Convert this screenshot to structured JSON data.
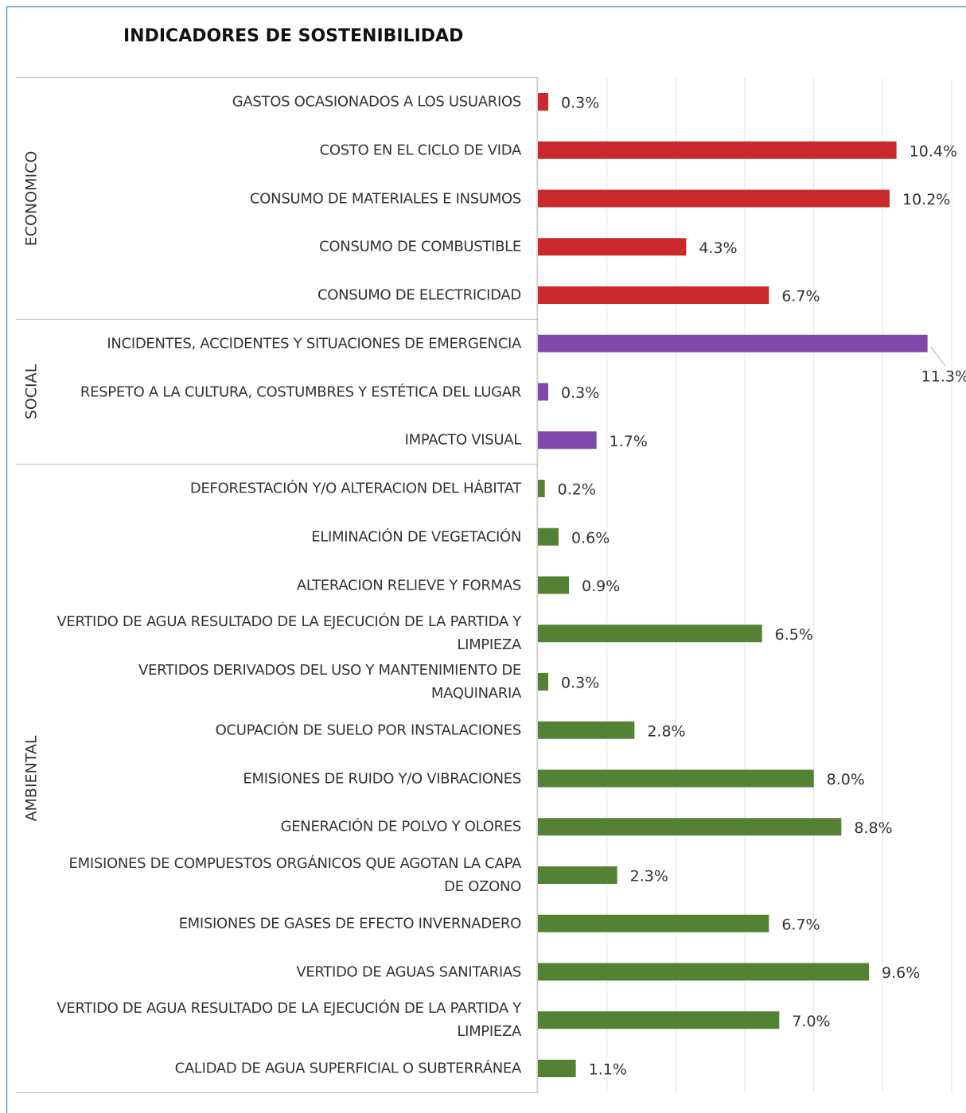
{
  "chart_data": {
    "type": "bar",
    "orientation": "horizontal",
    "title": "INDICADORES DE SOSTENIBILIDAD",
    "xlim": [
      0,
      12
    ],
    "xticks": [
      0,
      2,
      4,
      6,
      8,
      10,
      12
    ],
    "grid": true,
    "groups": [
      {
        "name": "ECONOMICO",
        "color": "#c9282d",
        "categories": [
          "GASTOS OCASIONADOS A LOS USUARIOS",
          "COSTO EN EL CICLO DE VIDA",
          "CONSUMO DE MATERIALES E INSUMOS",
          "CONSUMO DE COMBUSTIBLE",
          "CONSUMO DE ELECTRICIDAD"
        ],
        "values": [
          0.3,
          10.4,
          10.2,
          4.3,
          6.7
        ],
        "value_labels": [
          "0.3%",
          "10.4%",
          "10.2%",
          "4.3%",
          "6.7%"
        ]
      },
      {
        "name": "SOCIAL",
        "color": "#8048a8",
        "categories": [
          "INCIDENTES, ACCIDENTES Y SITUACIONES DE EMERGENCIA",
          "RESPETO A LA CULTURA, COSTUMBRES Y ESTÉTICA DEL LUGAR",
          "IMPACTO VISUAL"
        ],
        "values": [
          11.3,
          0.3,
          1.7
        ],
        "value_labels": [
          "11.3%",
          "0.3%",
          "1.7%"
        ]
      },
      {
        "name": "AMBIENTAL",
        "color": "#548235",
        "categories": [
          "DEFORESTACIÓN Y/O ALTERACION DEL HÁBITAT",
          "ELIMINACIÓN DE VEGETACIÓN",
          "ALTERACION RELIEVE Y FORMAS",
          "VERTIDO DE AGUA RESULTADO DE LA EJECUCIÓN DE LA PARTIDA Y LIMPIEZA",
          "VERTIDOS DERIVADOS DEL USO Y MANTENIMIENTO DE MAQUINARIA",
          "OCUPACIÓN DE SUELO POR INSTALACIONES",
          "EMISIONES DE RUIDO Y/O VIBRACIONES",
          "GENERACIÓN DE POLVO Y OLORES",
          "EMISIONES DE COMPUESTOS ORGÁNICOS QUE AGOTAN LA CAPA DE OZONO",
          "EMISIONES DE GASES DE EFECTO INVERNADERO",
          "VERTIDO DE AGUAS SANITARIAS",
          "VERTIDO DE AGUA RESULTADO DE LA EJECUCIÓN DE LA PARTIDA Y LIMPIEZA",
          "CALIDAD DE AGUA SUPERFICIAL O SUBTERRÁNEA"
        ],
        "values": [
          0.2,
          0.6,
          0.9,
          6.5,
          0.3,
          2.8,
          8.0,
          8.8,
          2.3,
          6.7,
          9.6,
          7.0,
          1.1
        ],
        "value_labels": [
          "0.2%",
          "0.6%",
          "0.9%",
          "6.5%",
          "0.3%",
          "2.8%",
          "8.0%",
          "8.8%",
          "2.3%",
          "6.7%",
          "9.6%",
          "7.0%",
          "1.1%"
        ]
      }
    ]
  }
}
